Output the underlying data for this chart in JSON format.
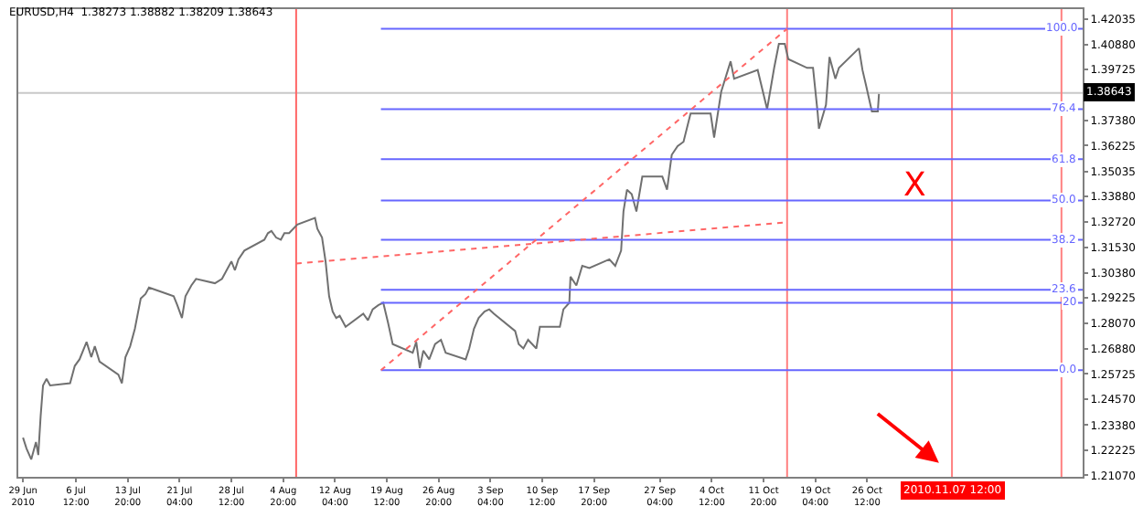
{
  "chart_data": {
    "type": "line",
    "title": "EURUSD,H4  1.38273 1.38882 1.38209 1.38643",
    "xlim": [
      "2010-06-28T08:00",
      "2010-11-26T00:00"
    ],
    "ylim": [
      1.21,
      1.425
    ],
    "xticks": [
      {
        "value": "2010-06-29T00:00",
        "label": "29 Jun 2010"
      },
      {
        "value": "2010-07-06T12:00",
        "label": "6 Jul 12:00"
      },
      {
        "value": "2010-07-13T20:00",
        "label": "13 Jul 20:00"
      },
      {
        "value": "2010-07-21T04:00",
        "label": "21 Jul 04:00"
      },
      {
        "value": "2010-07-28T12:00",
        "label": "28 Jul 12:00"
      },
      {
        "value": "2010-08-04T20:00",
        "label": "4 Aug 20:00"
      },
      {
        "value": "2010-08-12T04:00",
        "label": "12 Aug 04:00"
      },
      {
        "value": "2010-08-19T12:00",
        "label": "19 Aug 12:00"
      },
      {
        "value": "2010-08-26T20:00",
        "label": "26 Aug 20:00"
      },
      {
        "value": "2010-09-03T04:00",
        "label": "3 Sep 04:00"
      },
      {
        "value": "2010-09-10T12:00",
        "label": "10 Sep 12:00"
      },
      {
        "value": "2010-09-17T20:00",
        "label": "17 Sep 20:00"
      },
      {
        "value": "2010-09-27T04:00",
        "label": "27 Sep 04:00"
      },
      {
        "value": "2010-10-04T12:00",
        "label": "4 Oct 12:00"
      },
      {
        "value": "2010-10-11T20:00",
        "label": "11 Oct 20:00"
      },
      {
        "value": "2010-10-19T04:00",
        "label": "19 Oct 04:00"
      },
      {
        "value": "2010-10-26T12:00",
        "label": "26 Oct 12:00"
      }
    ],
    "yticks": [
      1.42035,
      {
        "value": 1.4088,
        "label": "1.40880"
      },
      1.39725,
      {
        "value": 1.3738,
        "label": "1.37380"
      },
      1.36225,
      1.35035,
      {
        "value": 1.3388,
        "label": "1.33880"
      },
      {
        "value": 1.3272,
        "label": "1.32720"
      },
      {
        "value": 1.3153,
        "label": "1.31530"
      },
      {
        "value": 1.3038,
        "label": "1.30380"
      },
      1.29225,
      {
        "value": 1.2807,
        "label": "1.28070"
      },
      {
        "value": 1.2688,
        "label": "1.26880"
      },
      1.25725,
      {
        "value": 1.2457,
        "label": "1.24570"
      },
      {
        "value": 1.2338,
        "label": "1.23380"
      },
      1.22225,
      {
        "value": 1.2107,
        "label": "1.21070"
      }
    ],
    "grid": false,
    "marker": "none",
    "series": [
      {
        "color": "#707070",
        "line_style": "solid",
        "x": [
          "2010-06-29T00:00",
          "2010-06-29T12:00",
          "2010-06-30T04:00",
          "2010-06-30T20:00",
          "2010-07-01T04:00",
          "2010-07-01T12:00",
          "2010-07-01T20:00",
          "2010-07-02T08:00",
          "2010-07-02T20:00",
          "2010-07-05T16:00",
          "2010-07-06T08:00",
          "2010-07-07T00:00",
          "2010-07-08T00:00",
          "2010-07-08T16:00",
          "2010-07-09T04:00",
          "2010-07-09T20:00",
          "2010-07-12T12:00",
          "2010-07-13T00:00",
          "2010-07-13T12:00",
          "2010-07-14T04:00",
          "2010-07-14T20:00",
          "2010-07-15T16:00",
          "2010-07-16T08:00",
          "2010-07-16T20:00",
          "2010-07-19T12:00",
          "2010-07-20T08:00",
          "2010-07-20T20:00",
          "2010-07-21T12:00",
          "2010-07-22T00:00",
          "2010-07-22T20:00",
          "2010-07-23T12:00",
          "2010-07-26T04:00",
          "2010-07-27T04:00",
          "2010-07-27T20:00",
          "2010-07-28T12:00",
          "2010-07-29T00:00",
          "2010-07-29T12:00",
          "2010-07-30T08:00",
          "2010-08-02T04:00",
          "2010-08-02T16:00",
          "2010-08-03T04:00",
          "2010-08-03T20:00",
          "2010-08-04T12:00",
          "2010-08-05T00:00",
          "2010-08-05T16:00",
          "2010-08-06T20:00",
          "2010-08-09T08:00",
          "2010-08-09T16:00",
          "2010-08-10T08:00",
          "2010-08-10T20:00",
          "2010-08-11T08:00",
          "2010-08-11T20:00",
          "2010-08-12T08:00",
          "2010-08-12T20:00",
          "2010-08-13T16:00",
          "2010-08-16T04:00",
          "2010-08-16T20:00",
          "2010-08-17T12:00",
          "2010-08-18T08:00",
          "2010-08-19T00:00",
          "2010-08-19T16:00",
          "2010-08-20T08:00",
          "2010-08-23T04:00",
          "2010-08-23T16:00",
          "2010-08-24T04:00",
          "2010-08-24T16:00",
          "2010-08-25T12:00",
          "2010-08-26T08:00",
          "2010-08-27T04:00",
          "2010-08-27T20:00",
          "2010-08-30T16:00",
          "2010-08-31T04:00",
          "2010-08-31T20:00",
          "2010-09-01T12:00",
          "2010-09-02T08:00",
          "2010-09-03T00:00",
          "2010-09-03T16:00",
          "2010-09-06T16:00",
          "2010-09-07T04:00",
          "2010-09-07T20:00",
          "2010-09-08T12:00",
          "2010-09-09T16:00",
          "2010-09-10T04:00",
          "2010-09-13T00:00",
          "2010-09-13T12:00",
          "2010-09-14T08:00",
          "2010-09-14T12:00",
          "2010-09-15T08:00",
          "2010-09-16T04:00",
          "2010-09-17T04:00",
          "2010-09-20T00:00",
          "2010-09-20T20:00",
          "2010-09-21T16:00",
          "2010-09-22T00:00",
          "2010-09-22T12:00",
          "2010-09-23T04:00",
          "2010-09-23T20:00",
          "2010-09-24T16:00",
          "2010-09-27T12:00",
          "2010-09-28T04:00",
          "2010-09-28T20:00",
          "2010-09-29T16:00",
          "2010-09-30T12:00",
          "2010-10-01T12:00",
          "2010-10-04T08:00",
          "2010-10-04T20:00",
          "2010-10-05T20:00",
          "2010-10-07T04:00",
          "2010-10-07T16:00",
          "2010-10-11T00:00",
          "2010-10-12T08:00",
          "2010-10-13T08:00",
          "2010-10-14T00:00",
          "2010-10-14T20:00",
          "2010-10-15T08:00",
          "2010-10-18T00:00",
          "2010-10-18T20:00",
          "2010-10-19T12:00",
          "2010-10-19T16:00",
          "2010-10-20T16:00",
          "2010-10-21T04:00",
          "2010-10-22T00:00",
          "2010-10-22T12:00",
          "2010-10-25T08:00",
          "2010-10-25T20:00",
          "2010-10-26T08:00",
          "2010-10-27T04:00",
          "2010-10-28T00:00",
          "2010-10-28T04:00"
        ],
        "values": [
          1.228,
          1.223,
          1.218,
          1.226,
          1.22,
          1.238,
          1.252,
          1.255,
          1.252,
          1.253,
          1.261,
          1.264,
          1.272,
          1.265,
          1.27,
          1.263,
          1.257,
          1.253,
          1.265,
          1.27,
          1.278,
          1.292,
          1.294,
          1.297,
          1.294,
          1.293,
          1.289,
          1.283,
          1.293,
          1.298,
          1.301,
          1.299,
          1.301,
          1.305,
          1.309,
          1.305,
          1.31,
          1.314,
          1.319,
          1.322,
          1.323,
          1.32,
          1.319,
          1.322,
          1.322,
          1.326,
          1.329,
          1.324,
          1.32,
          1.309,
          1.293,
          1.286,
          1.283,
          1.284,
          1.279,
          1.285,
          1.282,
          1.287,
          1.289,
          1.29,
          1.281,
          1.271,
          1.267,
          1.272,
          1.26,
          1.268,
          1.264,
          1.271,
          1.273,
          1.267,
          1.264,
          1.269,
          1.278,
          1.283,
          1.286,
          1.287,
          1.285,
          1.277,
          1.271,
          1.269,
          1.273,
          1.269,
          1.279,
          1.279,
          1.287,
          1.29,
          1.302,
          1.298,
          1.307,
          1.306,
          1.31,
          1.307,
          1.314,
          1.332,
          1.342,
          1.34,
          1.332,
          1.348,
          1.348,
          1.342,
          1.358,
          1.362,
          1.364,
          1.377,
          1.377,
          1.366,
          1.387,
          1.401,
          1.393,
          1.397,
          1.379,
          1.398,
          1.409,
          1.409,
          1.402,
          1.398,
          1.398,
          1.377,
          1.37,
          1.381,
          1.403,
          1.393,
          1.398,
          1.407,
          1.397,
          1.39,
          1.378,
          1.378,
          1.386
        ]
      },
      {
        "name": "100.0",
        "color": "#6666ff",
        "line_style": "solid",
        "x": [
          "2010-08-18T16:00",
          "2010-11-26T00:00"
        ],
        "values": [
          1.416,
          1.416
        ]
      },
      {
        "name": "76.4",
        "color": "#6666ff",
        "line_style": "solid",
        "x": [
          "2010-08-18T16:00",
          "2010-11-26T00:00"
        ],
        "values": [
          1.379,
          1.379
        ]
      },
      {
        "name": "61.8",
        "color": "#6666ff",
        "line_style": "solid",
        "x": [
          "2010-08-18T16:00",
          "2010-11-26T00:00"
        ],
        "values": [
          1.356,
          1.356
        ]
      },
      {
        "name": "50.0",
        "color": "#6666ff",
        "line_style": "solid",
        "x": [
          "2010-08-18T16:00",
          "2010-11-26T00:00"
        ],
        "values": [
          1.337,
          1.337
        ]
      },
      {
        "name": "38.2",
        "color": "#6666ff",
        "line_style": "solid",
        "x": [
          "2010-08-18T16:00",
          "2010-11-26T00:00"
        ],
        "values": [
          1.319,
          1.319
        ]
      },
      {
        "name": "23.6",
        "color": "#6666ff",
        "line_style": "solid",
        "x": [
          "2010-08-18T16:00",
          "2010-11-26T00:00"
        ],
        "values": [
          1.296,
          1.296
        ]
      },
      {
        "name": "20",
        "color": "#6666ff",
        "line_style": "solid",
        "x": [
          "2010-08-18T16:00",
          "2010-11-26T00:00"
        ],
        "values": [
          1.29,
          1.29
        ]
      },
      {
        "name": "0.0",
        "color": "#6666ff",
        "line_style": "solid",
        "x": [
          "2010-08-18T16:00",
          "2010-11-26T00:00"
        ],
        "values": [
          1.259,
          1.259
        ]
      },
      {
        "color": "#ff6666",
        "line_style": "dotted",
        "x": [
          "2010-08-18T16:00",
          "2010-10-15T04:00"
        ],
        "values": [
          1.259,
          1.416
        ]
      },
      {
        "color": "#ff6666",
        "line_style": "dotted",
        "x": [
          "2010-08-06T16:00",
          "2010-10-15T04:00"
        ],
        "values": [
          1.308,
          1.327
        ]
      }
    ],
    "ref_lines": [
      {
        "axis": "y",
        "value": 1.38643,
        "label": "1.38643",
        "color": "#c8c8c8"
      },
      {
        "axis": "x",
        "value": "2010-08-06T16:00",
        "color": "#ff6666"
      },
      {
        "axis": "x",
        "value": "2010-10-15T04:00",
        "color": "#ff8080"
      },
      {
        "axis": "x",
        "value": "2010-11-07T12:00",
        "label": "2010.11.07 12:00",
        "color": "#ff8080"
      },
      {
        "axis": "x",
        "value": "2010-11-23T00:00",
        "color": "#ff8080"
      }
    ],
    "annotations": [
      "X"
    ]
  }
}
